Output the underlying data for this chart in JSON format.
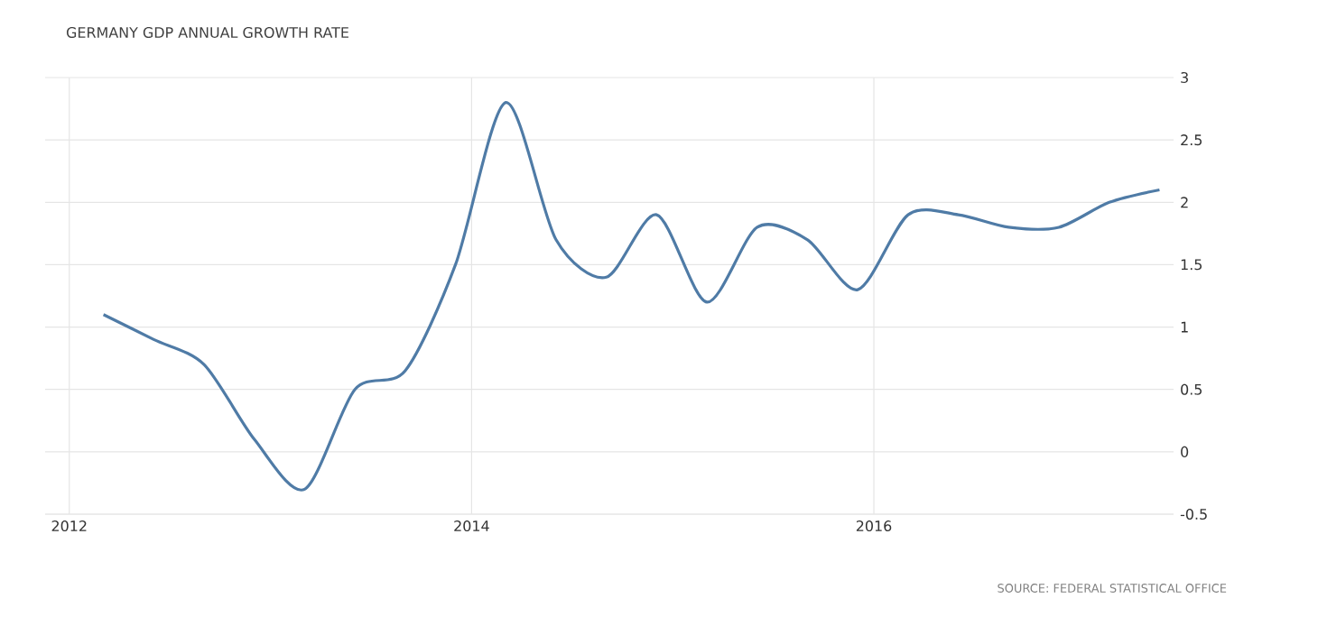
{
  "chart_data": {
    "type": "line",
    "title": "GERMANY GDP ANNUAL GROWTH RATE",
    "annotations": [
      "SOURCE: FEDERAL STATISTICAL OFFICE"
    ],
    "x": [
      2012.17,
      2012.42,
      2012.67,
      2012.92,
      2013.17,
      2013.42,
      2013.67,
      2013.92,
      2014.17,
      2014.42,
      2014.67,
      2014.92,
      2015.17,
      2015.42,
      2015.67,
      2015.92,
      2016.17,
      2016.42,
      2016.67,
      2016.92,
      2017.17,
      2017.42
    ],
    "values": [
      1.1,
      0.9,
      0.7,
      0.1,
      -0.3,
      0.5,
      0.65,
      1.5,
      2.8,
      1.7,
      1.4,
      1.9,
      1.2,
      1.8,
      1.7,
      1.3,
      1.9,
      1.9,
      1.8,
      1.8,
      2.0,
      2.1
    ],
    "color": "#4f7ba6",
    "xlim": [
      2011.88,
      2017.49
    ],
    "ylim": [
      -0.5,
      3
    ],
    "xticks": [
      2012,
      2014,
      2016
    ],
    "yticks": [
      -0.5,
      0,
      0.5,
      1,
      1.5,
      2,
      2.5,
      3
    ],
    "grid": true,
    "marker": "none",
    "line_style": "solid"
  }
}
